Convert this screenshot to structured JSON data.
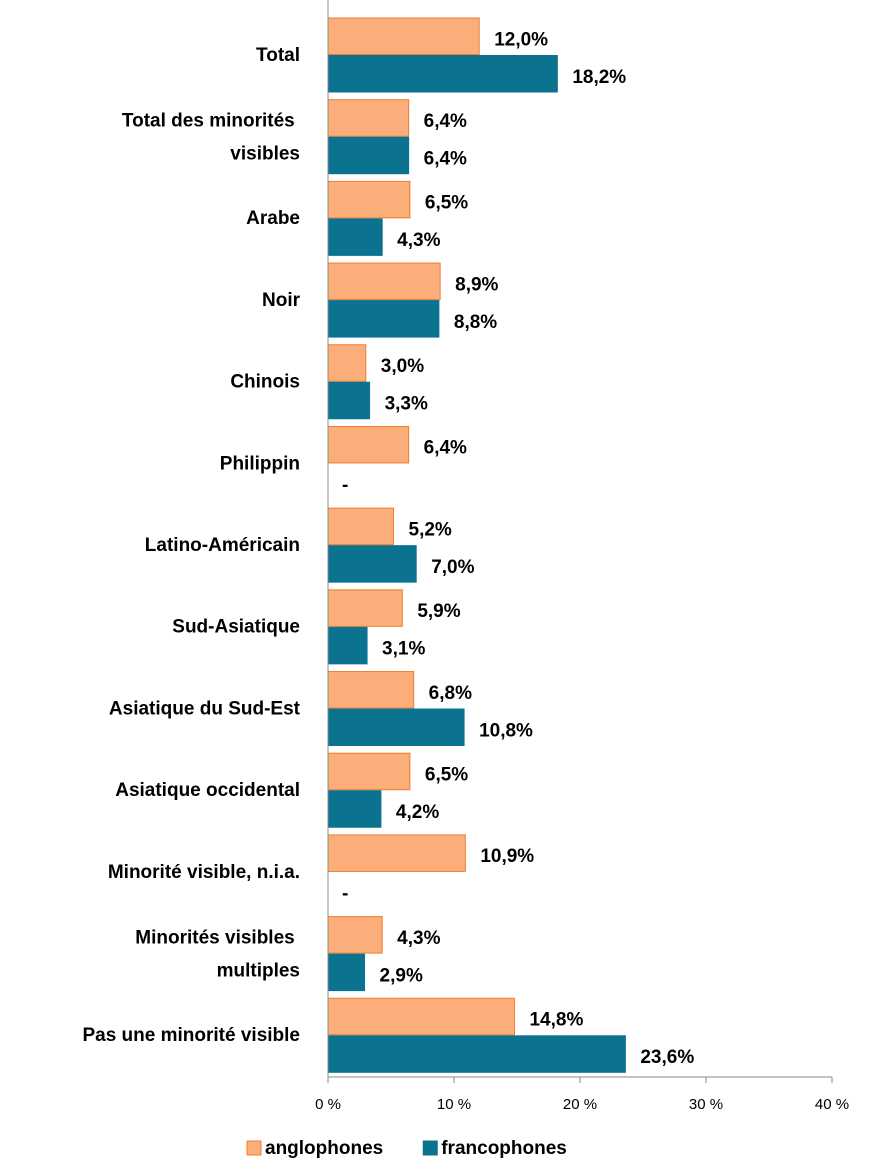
{
  "chart_data": {
    "type": "bar",
    "orientation": "horizontal",
    "categories": [
      "Total",
      "Total des minorités visibles",
      "Arabe",
      "Noir",
      "Chinois",
      "Philippin",
      "Latino-Américain",
      "Sud-Asiatique",
      "Asiatique du Sud-Est",
      "Asiatique occidental",
      "Minorité visible, n.i.a.",
      "Minorités visibles multiples",
      "Pas une minorité visible"
    ],
    "series": [
      {
        "name": "anglophones",
        "color": "#fbae7a",
        "edge": "#f07d2d",
        "values": [
          12.0,
          6.4,
          6.5,
          8.9,
          3.0,
          6.4,
          5.2,
          5.9,
          6.8,
          6.5,
          10.9,
          4.3,
          14.8
        ],
        "value_labels": [
          "12,0%",
          "6,4%",
          "6,5%",
          "8,9%",
          "3,0%",
          "6,4%",
          "5,2%",
          "5,9%",
          "6,8%",
          "6,5%",
          "10,9%",
          "4,3%",
          "14,8%"
        ]
      },
      {
        "name": "francophones",
        "color": "#0b7290",
        "edge": "#0b7290",
        "values": [
          18.2,
          6.4,
          4.3,
          8.8,
          3.3,
          null,
          7.0,
          3.1,
          10.8,
          4.2,
          null,
          2.9,
          23.6
        ],
        "value_labels": [
          "18,2%",
          "6,4%",
          "4,3%",
          "8,8%",
          "3,3%",
          "-",
          "7,0%",
          "3,1%",
          "10,8%",
          "4,2%",
          "-",
          "2,9%",
          "23,6%"
        ]
      }
    ],
    "xlim": [
      0,
      40
    ],
    "xticks": [
      {
        "value": 0,
        "label": "0 %"
      },
      {
        "value": 10,
        "label": "10 %"
      },
      {
        "value": 20,
        "label": "20 %"
      },
      {
        "value": 30,
        "label": "30 %"
      },
      {
        "value": 40,
        "label": "40 %"
      }
    ],
    "legend": "bottom"
  }
}
